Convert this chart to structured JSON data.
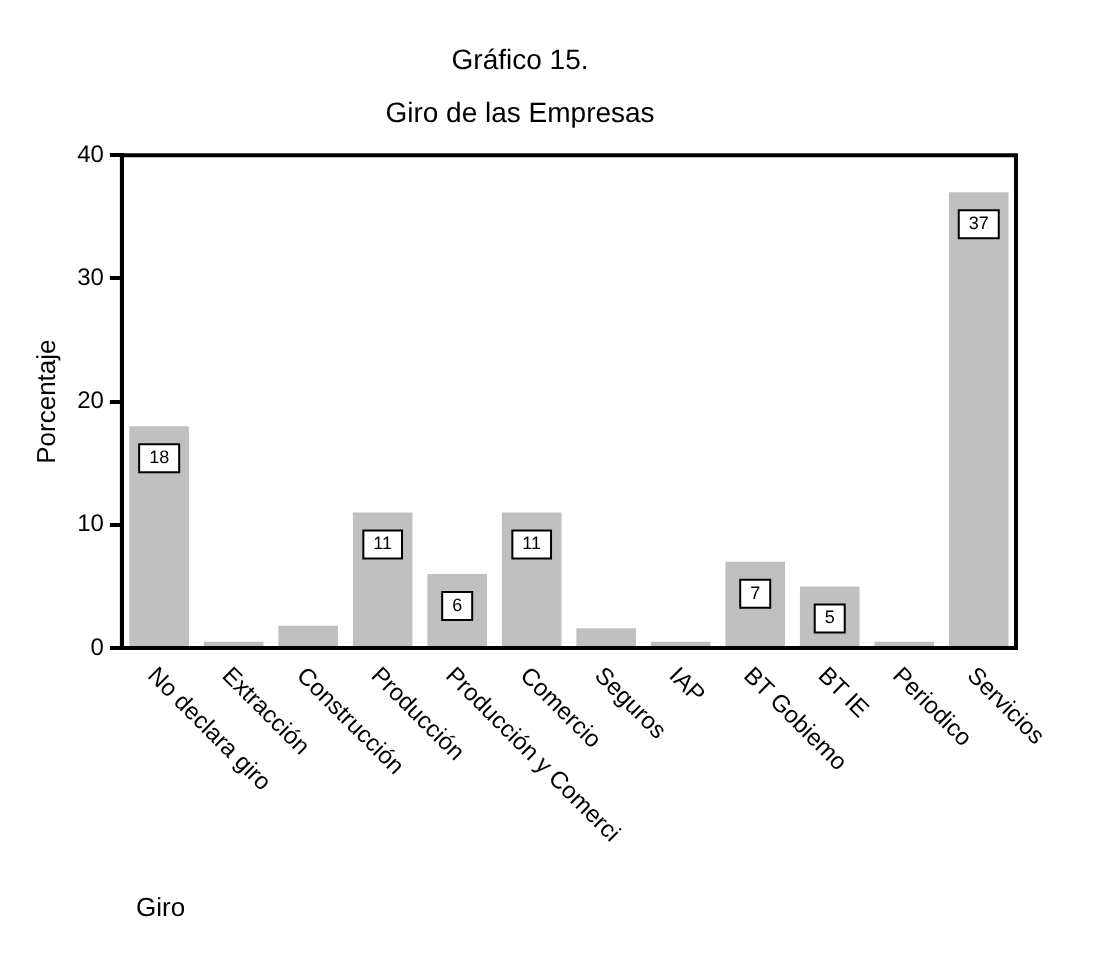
{
  "chart_data": {
    "type": "bar",
    "title": "Gráfico 15.",
    "subtitle": "Giro de las Empresas",
    "xlabel": "Giro",
    "ylabel": "Porcentaje",
    "categories": [
      "No declara giro",
      "Extracción",
      "Construcción",
      "Producción",
      "Producción y Comerci",
      "Comercio",
      "Seguros",
      "IAP",
      "BT Gobiemo",
      "BT IE",
      "Periodico",
      "Servicios"
    ],
    "values": [
      18,
      0.5,
      1.8,
      11,
      6,
      11,
      1.6,
      0.5,
      7,
      5,
      0.5,
      37
    ],
    "value_labels": [
      "18",
      null,
      null,
      "11",
      "6",
      "11",
      null,
      null,
      "7",
      "5",
      null,
      "37"
    ],
    "color": "#c0c0c0",
    "ylim": [
      0,
      40
    ],
    "yticks": [
      0,
      10,
      20,
      30,
      40
    ],
    "grid": false,
    "legend": false
  }
}
